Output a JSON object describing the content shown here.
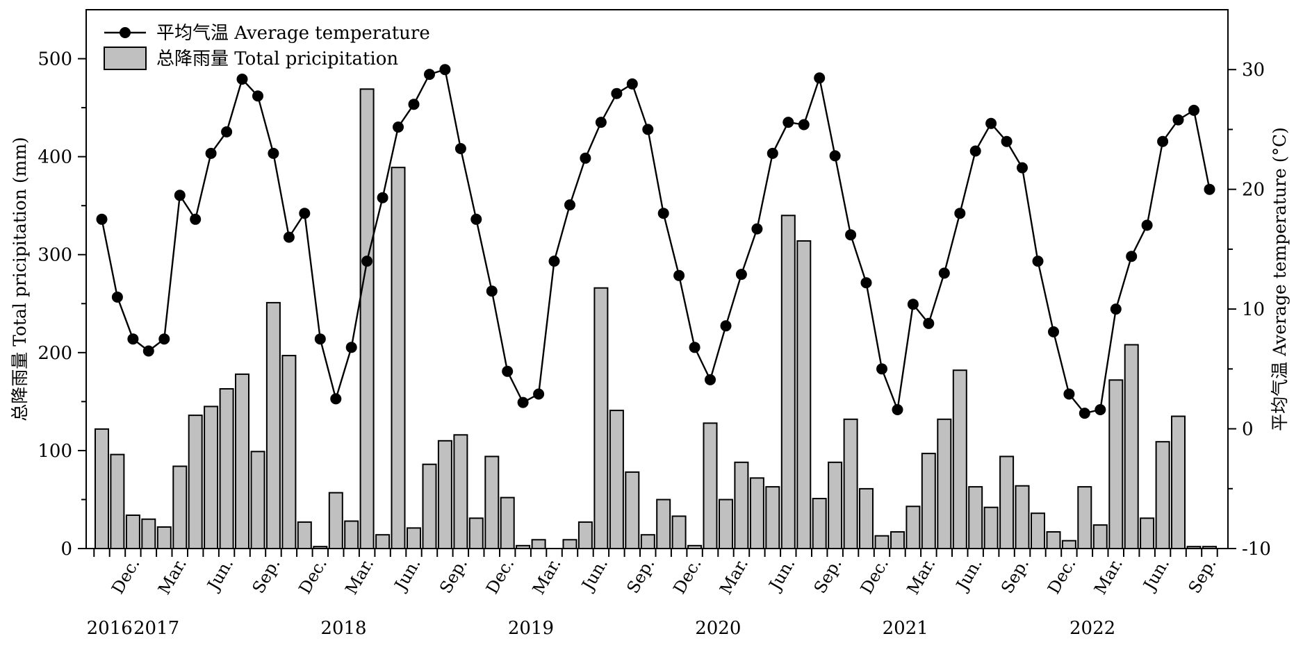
{
  "chart_data": {
    "type": "bar+line",
    "legend": {
      "placement": "top-left",
      "temperature": "平均气温 Average temperature",
      "precipitation": "总降雨量 Total pricipitation"
    },
    "y_left": {
      "label": "总降雨量 Total pricipitation (mm)",
      "ylim": [
        0,
        550
      ],
      "ticks": [
        0,
        100,
        200,
        300,
        400,
        500
      ]
    },
    "y_right": {
      "label": "平均气温  Average temperature (°C)",
      "ylim": [
        -10,
        35
      ],
      "ticks": [
        -10,
        0,
        10,
        20,
        30
      ]
    },
    "x_month_labels": [
      "Dec.",
      "Mar.",
      "Jun.",
      "Sep.",
      "Dec.",
      "Mar.",
      "Jun.",
      "Sep.",
      "Dec.",
      "Mar.",
      "Jun.",
      "Sep.",
      "Dec.",
      "Mar.",
      "Jun.",
      "Sep.",
      "Dec.",
      "Mar.",
      "Jun.",
      "Sep.",
      "Dec.",
      "Mar.",
      "Jun.",
      "Sep."
    ],
    "x_month_label_index": [
      2,
      5,
      8,
      11,
      14,
      17,
      20,
      23,
      26,
      29,
      32,
      35,
      38,
      41,
      44,
      47,
      50,
      53,
      56,
      59,
      62,
      65,
      68,
      71
    ],
    "x_year_labels": [
      {
        "text": "2016",
        "index": 0.5
      },
      {
        "text": "2017",
        "index": 3.5
      },
      {
        "text": "2018",
        "index": 15.5
      },
      {
        "text": "2019",
        "index": 27.5
      },
      {
        "text": "2020",
        "index": 39.5
      },
      {
        "text": "2021",
        "index": 51.5
      },
      {
        "text": "2022",
        "index": 63.5
      }
    ],
    "categories": [
      "2016-10",
      "2016-11",
      "2016-12",
      "2017-01",
      "2017-02",
      "2017-03",
      "2017-04",
      "2017-05",
      "2017-06",
      "2017-07",
      "2017-08",
      "2017-09",
      "2017-10",
      "2017-11",
      "2017-12",
      "2018-01",
      "2018-02",
      "2018-03",
      "2018-04",
      "2018-05",
      "2018-06",
      "2018-07",
      "2018-08",
      "2018-09",
      "2018-10",
      "2018-11",
      "2018-12",
      "2019-01",
      "2019-02",
      "2019-03",
      "2019-04",
      "2019-05",
      "2019-06",
      "2019-07",
      "2019-08",
      "2019-09",
      "2019-10",
      "2019-11",
      "2019-12",
      "2020-01",
      "2020-02",
      "2020-03",
      "2020-04",
      "2020-05",
      "2020-06",
      "2020-07",
      "2020-08",
      "2020-09",
      "2020-10",
      "2020-11",
      "2020-12",
      "2021-01",
      "2021-02",
      "2021-03",
      "2021-04",
      "2021-05",
      "2021-06",
      "2021-07",
      "2021-08",
      "2021-09",
      "2021-10",
      "2021-11",
      "2021-12",
      "2022-01",
      "2022-02",
      "2022-03",
      "2022-04",
      "2022-05",
      "2022-06",
      "2022-07",
      "2022-08",
      "2022-09"
    ],
    "series": [
      {
        "name": "总降雨量 Total pricipitation",
        "type": "bar",
        "axis": "left",
        "values": [
          122,
          96,
          34,
          30,
          22,
          84,
          136,
          145,
          163,
          178,
          99,
          251,
          197,
          27,
          2,
          57,
          28,
          469,
          14,
          389,
          21,
          86,
          110,
          116,
          31,
          94,
          52,
          3,
          9,
          0,
          9,
          27,
          266,
          141,
          78,
          14,
          50,
          33,
          3,
          128,
          50,
          88,
          72,
          63,
          340,
          314,
          51,
          88,
          132,
          61,
          13,
          17,
          43,
          97,
          132,
          182,
          63,
          42,
          94,
          64,
          36,
          17,
          8,
          63,
          24,
          172,
          208,
          31,
          109,
          135,
          2,
          2
        ]
      },
      {
        "name": "平均气温 Average temperature",
        "type": "line",
        "axis": "right",
        "values": [
          17.5,
          11.0,
          7.5,
          6.5,
          7.5,
          19.5,
          17.5,
          23.0,
          24.8,
          29.2,
          27.8,
          23.0,
          16.0,
          18.0,
          7.5,
          2.5,
          6.8,
          14.0,
          19.3,
          25.2,
          27.1,
          29.6,
          30.0,
          23.4,
          17.5,
          11.5,
          4.8,
          2.2,
          2.9,
          14.0,
          18.7,
          22.6,
          25.6,
          28.0,
          28.8,
          25.0,
          18.0,
          12.8,
          6.8,
          4.1,
          8.6,
          12.9,
          16.7,
          23.0,
          25.6,
          25.4,
          29.3,
          22.8,
          16.2,
          12.2,
          5.0,
          1.6,
          10.4,
          8.8,
          13.0,
          18.0,
          23.2,
          25.5,
          24.0,
          21.8,
          14.0,
          8.1,
          2.9,
          1.3,
          1.6,
          10.0,
          14.4,
          17.0,
          24.0,
          25.8,
          26.6,
          20.0
        ]
      }
    ]
  }
}
